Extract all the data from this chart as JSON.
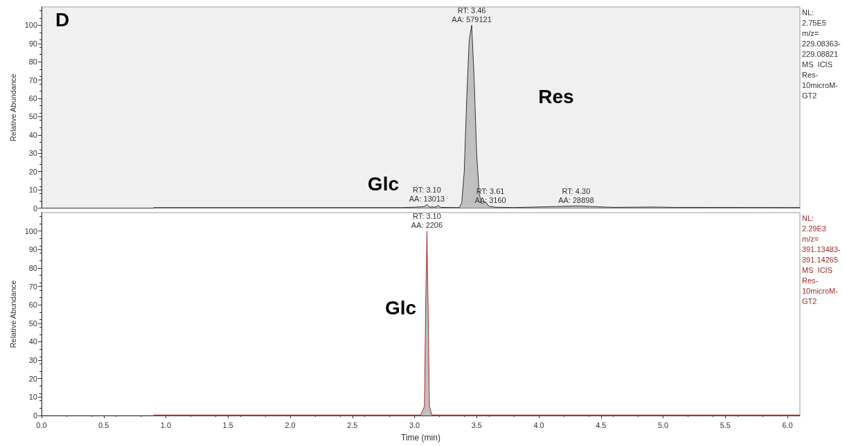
{
  "chart_data": [
    {
      "type": "area",
      "ylabel": "Relative Abundance",
      "xlim": [
        0,
        6.1
      ],
      "ylim": [
        0,
        110
      ],
      "tick_labels": "y",
      "grid": false,
      "marker": "none",
      "yticks": [
        0,
        10,
        20,
        30,
        40,
        50,
        60,
        70,
        80,
        90,
        100
      ],
      "series": [
        {
          "color": "#333333",
          "x": [
            0.9,
            2.9,
            3.0,
            3.08,
            3.1,
            3.12,
            3.17,
            3.19,
            3.21,
            3.36,
            3.38,
            3.4,
            3.42,
            3.44,
            3.46,
            3.48,
            3.5,
            3.52,
            3.54,
            3.57,
            3.6,
            3.65,
            3.8,
            4.1,
            4.3,
            4.45,
            4.6,
            4.9,
            5.1,
            6.1
          ],
          "values": [
            0.3,
            0.3,
            0.5,
            0.8,
            2,
            0.6,
            0.6,
            1.5,
            0.4,
            0.3,
            3,
            20,
            60,
            92,
            100,
            70,
            30,
            8,
            2.5,
            3.5,
            1,
            0.5,
            0.3,
            0.8,
            1.2,
            0.8,
            0.4,
            0.6,
            0.4,
            0.3
          ]
        }
      ],
      "annotations": [
        {
          "text": "RT: 3.46\nAA: 579121",
          "x": 3.46,
          "y": 100
        },
        {
          "text": "RT: 3.10\nAA: 13013",
          "x": 3.1,
          "y": 2
        },
        {
          "text": "RT: 3.61\nAA: 3160",
          "x": 3.61,
          "y": 1
        },
        {
          "text": "RT: 4.30\nAA: 28898",
          "x": 4.3,
          "y": 1.2
        },
        "D",
        "Res",
        "Glc",
        "NL:\n2.75E5\nm/z=\n229.08363-\n229.08821\nMS  ICIS\nRes-\n10microM-\nGT2"
      ]
    },
    {
      "type": "area",
      "ylabel": "Relative Abundance",
      "xlabel": "Time (min)",
      "xlim": [
        0,
        6.1
      ],
      "ylim": [
        0,
        110
      ],
      "grid": false,
      "marker": "none",
      "xticks": [
        {
          "value": 0,
          "label": "0.0"
        },
        {
          "value": 0.5,
          "label": "0.5"
        },
        {
          "value": 1,
          "label": "1.0"
        },
        {
          "value": 1.5,
          "label": "1.5"
        },
        {
          "value": 2,
          "label": "2.0"
        },
        {
          "value": 2.5,
          "label": "2.5"
        },
        {
          "value": 3,
          "label": "3.0"
        },
        {
          "value": 3.5,
          "label": "3.5"
        },
        {
          "value": 4,
          "label": "4.0"
        },
        {
          "value": 4.5,
          "label": "4.5"
        },
        {
          "value": 5,
          "label": "5.0"
        },
        {
          "value": 5.5,
          "label": "5.5"
        },
        {
          "value": 6,
          "label": "6.0"
        }
      ],
      "yticks": [
        0,
        10,
        20,
        30,
        40,
        50,
        60,
        70,
        80,
        90,
        100
      ],
      "series": [
        {
          "color": "#a52a2a",
          "x": [
            0.9,
            3.05,
            3.08,
            3.09,
            3.1,
            3.11,
            3.12,
            3.14,
            6.1
          ],
          "values": [
            0.3,
            0.3,
            5,
            60,
            100,
            55,
            5,
            0.3,
            0.3
          ]
        }
      ],
      "annotations": [
        {
          "text": "RT: 3.10\nAA: 2206",
          "x": 3.1,
          "y": 100
        },
        "Glc",
        "NL:\n2.29E3\nm/z=\n391.13483-\n391.14265\nMS  ICIS\nRes-\n10microM-\nGT2"
      ]
    }
  ]
}
